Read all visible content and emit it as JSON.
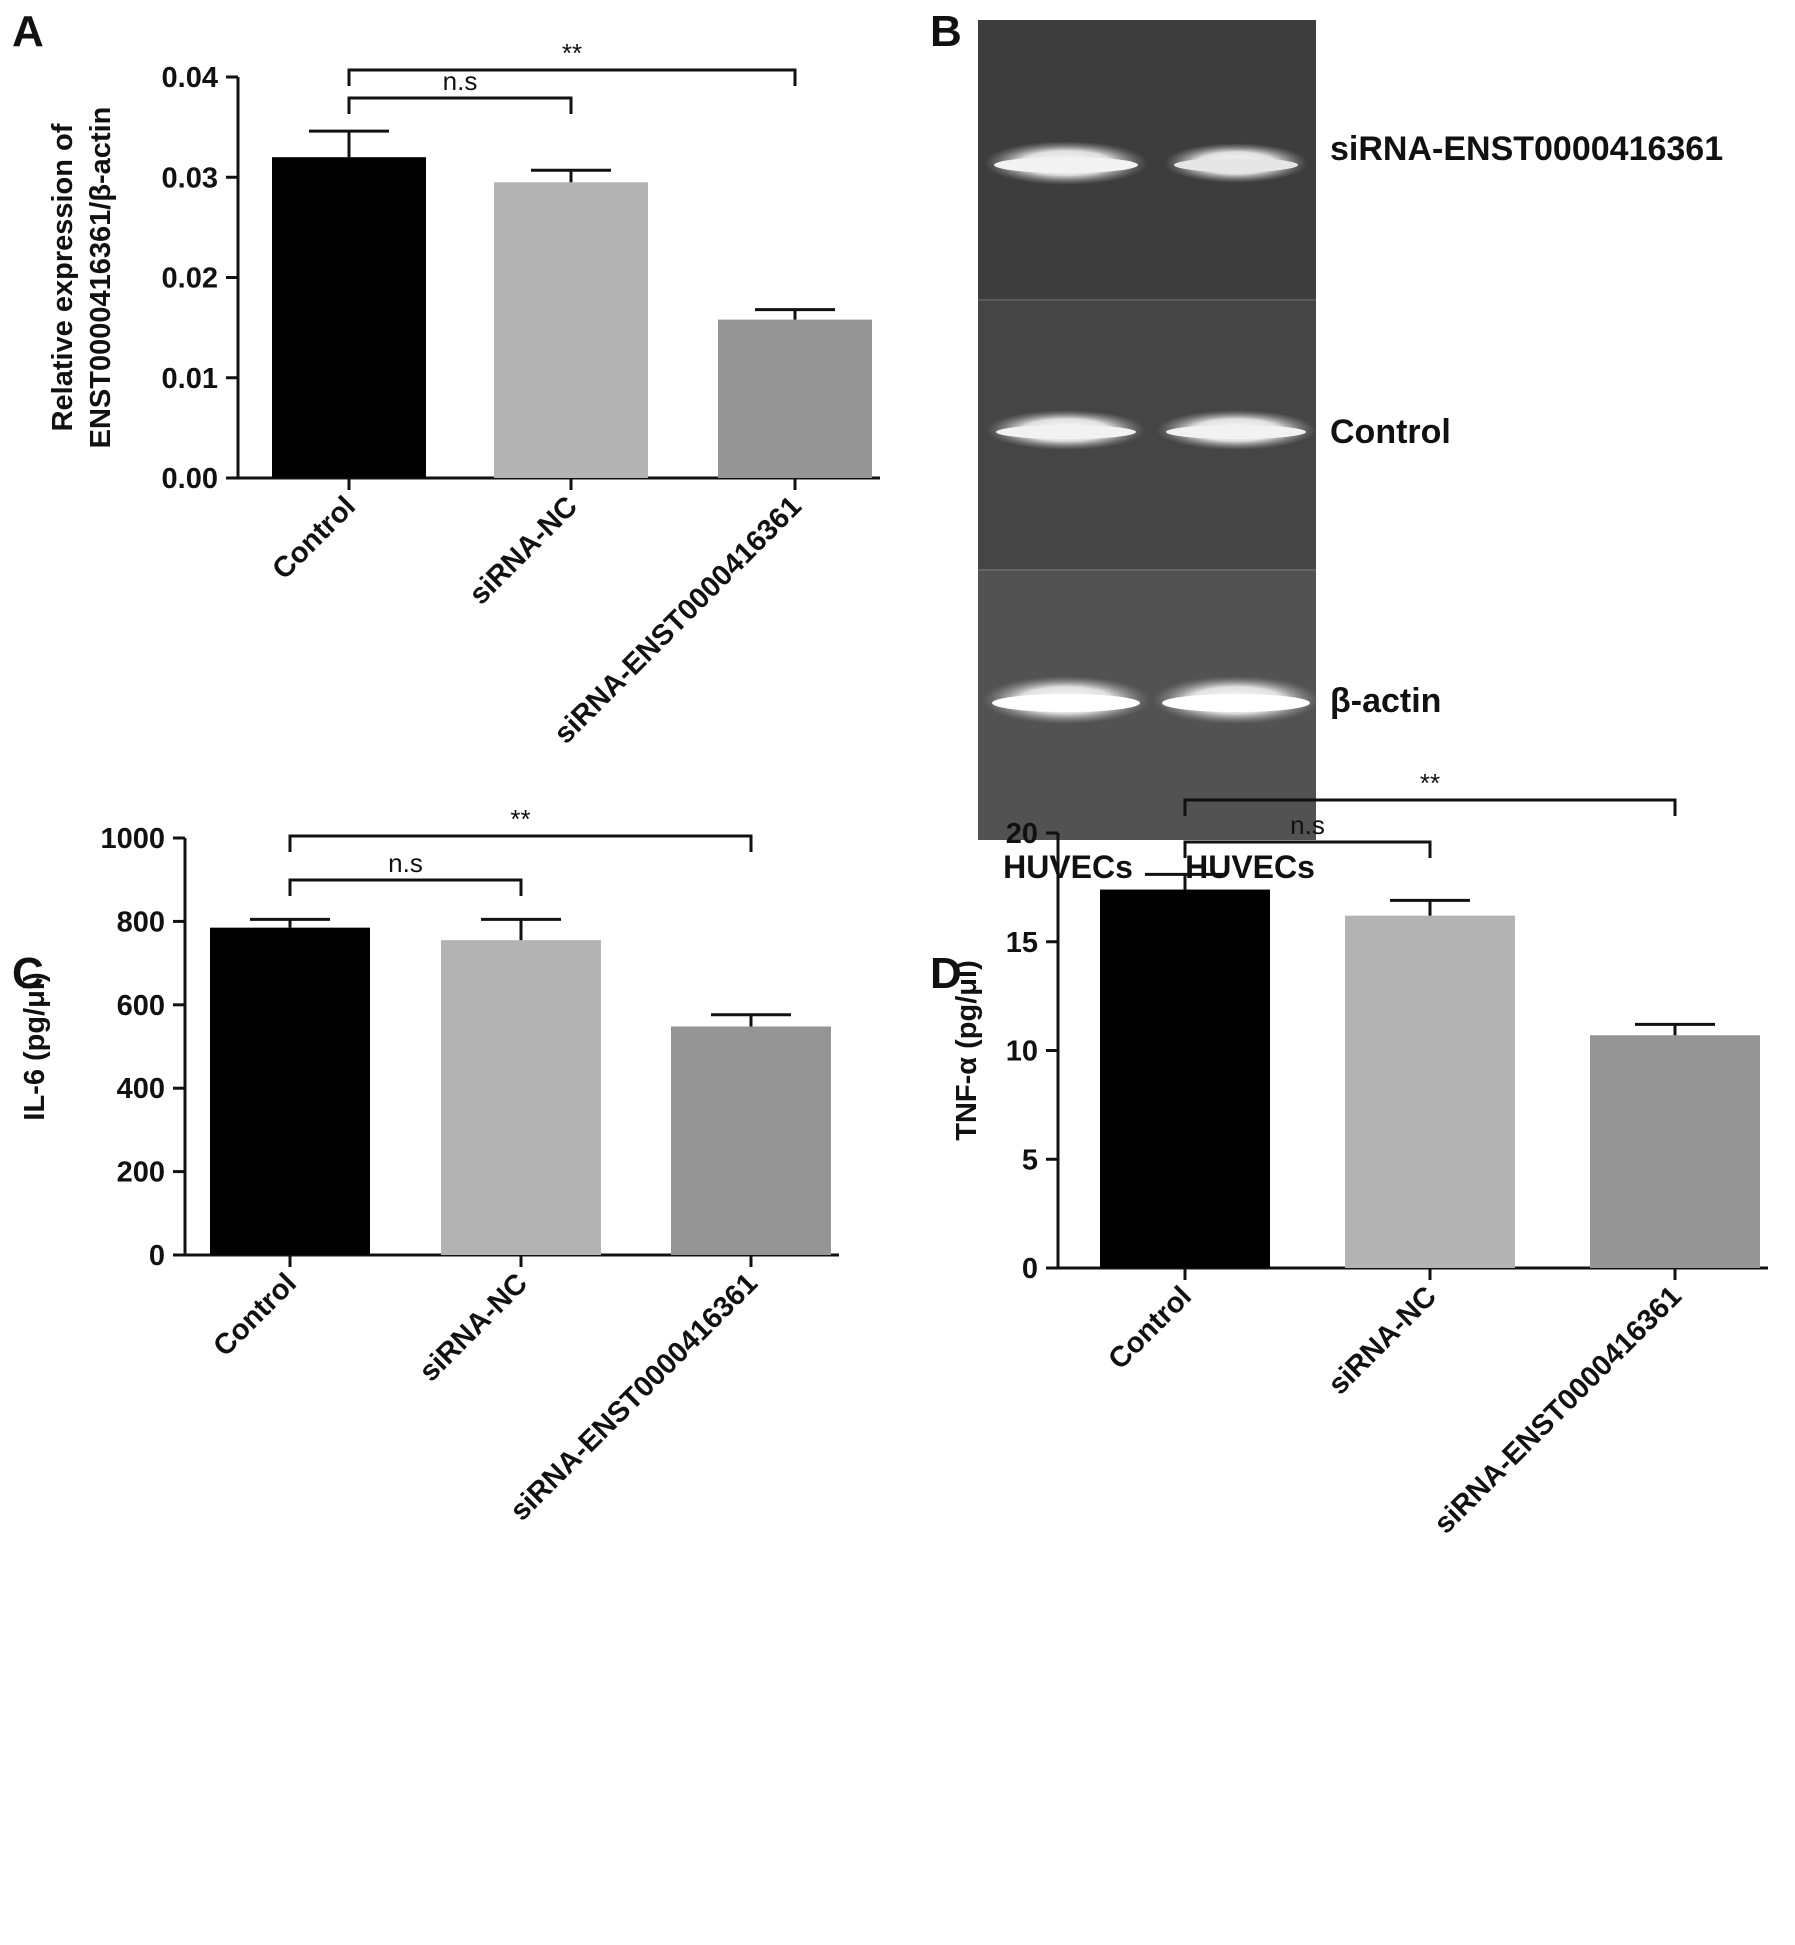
{
  "colors": {
    "control": "#000000",
    "sirna_nc": "#b3b3b3",
    "sirna_enst": "#959595",
    "gel_background": "#3c3c3c",
    "gel_band": "#f0f0f0"
  },
  "chart_data": [
    {
      "id": "A",
      "panel_label": "A",
      "type": "bar",
      "categories": [
        "Control",
        "siRNA-NC",
        "siRNA-ENST0000416361"
      ],
      "values": [
        0.032,
        0.0295,
        0.0158
      ],
      "errors": [
        0.0026,
        0.0012,
        0.001
      ],
      "ylabel_lines": [
        "Relative expression of",
        "ENST0000416361/β-actin"
      ],
      "ylim": [
        0,
        0.04
      ],
      "yticks": [
        0,
        0.01,
        0.02,
        0.03,
        0.04
      ],
      "ytick_labels": [
        "0.00",
        "0.01",
        "0.02",
        "0.03",
        "0.04"
      ],
      "significance": [
        {
          "from": 0,
          "to": 1,
          "label": "n.s",
          "level": 1
        },
        {
          "from": 0,
          "to": 2,
          "label": "**",
          "level": 2
        }
      ]
    },
    {
      "id": "C",
      "panel_label": "C",
      "type": "bar",
      "categories": [
        "Control",
        "siRNA-NC",
        "siRNA-ENST0000416361"
      ],
      "values": [
        785,
        755,
        548
      ],
      "errors": [
        20,
        50,
        28
      ],
      "ylabel_lines": [
        "IL-6 (pg/μl)"
      ],
      "ylim": [
        0,
        1000
      ],
      "yticks": [
        0,
        200,
        400,
        600,
        800,
        1000
      ],
      "ytick_labels": [
        "0",
        "200",
        "400",
        "600",
        "800",
        "1000"
      ],
      "significance": [
        {
          "from": 0,
          "to": 1,
          "label": "n.s",
          "level": 1
        },
        {
          "from": 0,
          "to": 2,
          "label": "**",
          "level": 2
        }
      ]
    },
    {
      "id": "D",
      "panel_label": "D",
      "type": "bar",
      "categories": [
        "Control",
        "siRNA-NC",
        "siRNA-ENST0000416361"
      ],
      "values": [
        17.4,
        16.2,
        10.7
      ],
      "errors": [
        0.7,
        0.7,
        0.5
      ],
      "ylabel_lines": [
        "TNF-α (pg/μl)"
      ],
      "ylim": [
        0,
        20
      ],
      "yticks": [
        0,
        5,
        10,
        15,
        20
      ],
      "ytick_labels": [
        "0",
        "5",
        "10",
        "15",
        "20"
      ],
      "significance": [
        {
          "from": 0,
          "to": 1,
          "label": "n.s",
          "level": 1
        },
        {
          "from": 0,
          "to": 2,
          "label": "**",
          "level": 2
        }
      ]
    }
  ],
  "gel": {
    "panel_label": "B",
    "row_labels": [
      "siRNA-ENST0000416361",
      "Control",
      "β-actin"
    ],
    "lane_labels": [
      "HUVECs",
      "HUVECs"
    ]
  }
}
